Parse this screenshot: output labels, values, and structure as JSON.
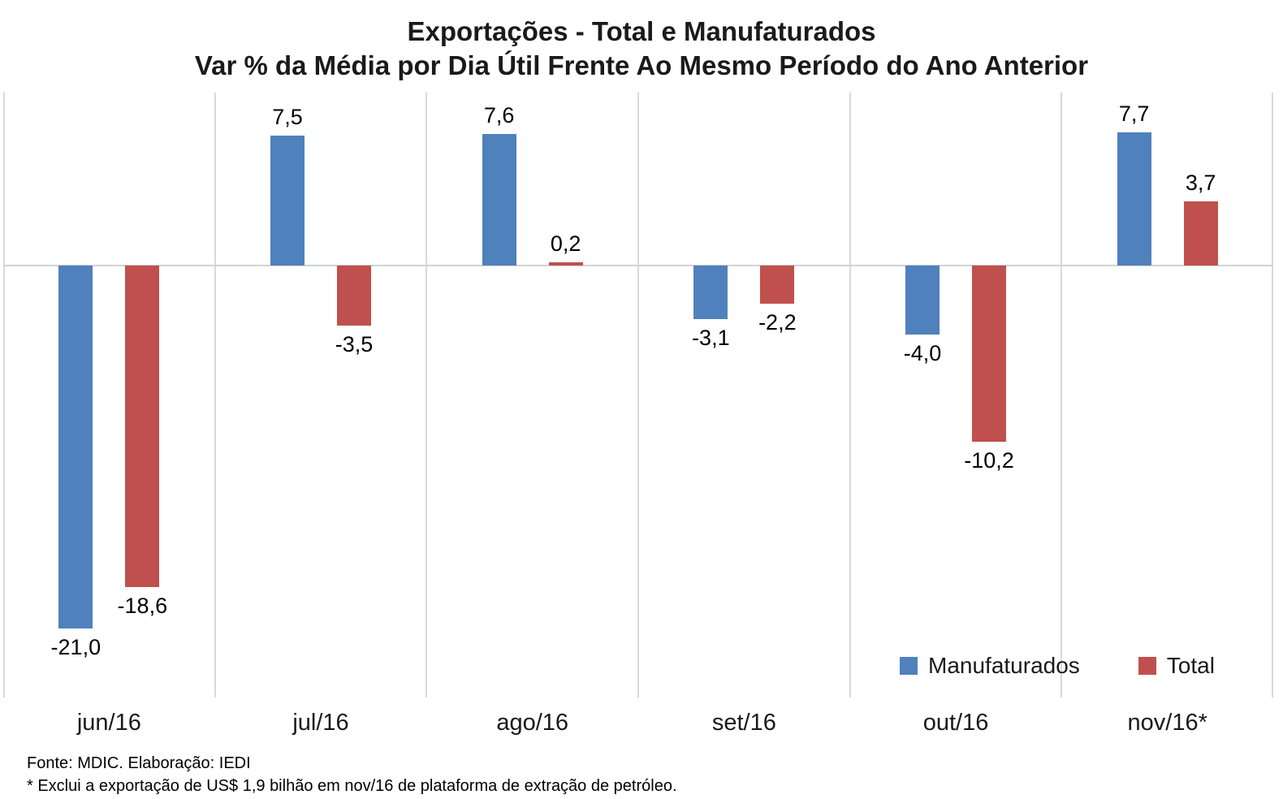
{
  "title": {
    "line1": "Exportações - Total e Manufaturados",
    "line2": "Var % da Média por Dia Útil Frente Ao Mesmo Período do Ano Anterior"
  },
  "chart_data": {
    "type": "bar",
    "categories": [
      "jun/16",
      "jul/16",
      "ago/16",
      "set/16",
      "out/16",
      "nov/16*"
    ],
    "series": [
      {
        "name": "Manufaturados",
        "color": "#4F81BD",
        "values": [
          -21.0,
          7.5,
          7.6,
          -3.1,
          -4.0,
          7.7
        ],
        "labels": [
          "-21,0",
          "7,5",
          "7,6",
          "-3,1",
          "-4,0",
          "7,7"
        ]
      },
      {
        "name": "Total",
        "color": "#C0504D",
        "values": [
          -18.6,
          -3.5,
          0.2,
          -2.2,
          -10.2,
          3.7
        ],
        "labels": [
          "-18,6",
          "-3,5",
          "0,2",
          "-2,2",
          "-10,2",
          "3,7"
        ]
      }
    ],
    "ylim": [
      -25,
      10
    ],
    "ylabel": "",
    "xlabel": "",
    "grid": "vertical-category-separators-only",
    "zero_line": true,
    "legend_position": "bottom-right-inside",
    "data_labels": "outside-end"
  },
  "legend": {
    "items": [
      {
        "label": "Manufaturados",
        "color": "#4F81BD"
      },
      {
        "label": "Total",
        "color": "#C0504D"
      }
    ]
  },
  "footer": {
    "line1": "Fonte: MDIC. Elaboração: IEDI",
    "line2": "* Exclui a exportação de US$ 1,9 bilhão em nov/16 de plataforma de extração de petróleo."
  },
  "colors": {
    "manufaturados": "#4F81BD",
    "total": "#C0504D",
    "gridline": "#D9D9D9",
    "zero_line": "#D2D2D2",
    "background": "#FFFFFF",
    "text": "#000000"
  }
}
